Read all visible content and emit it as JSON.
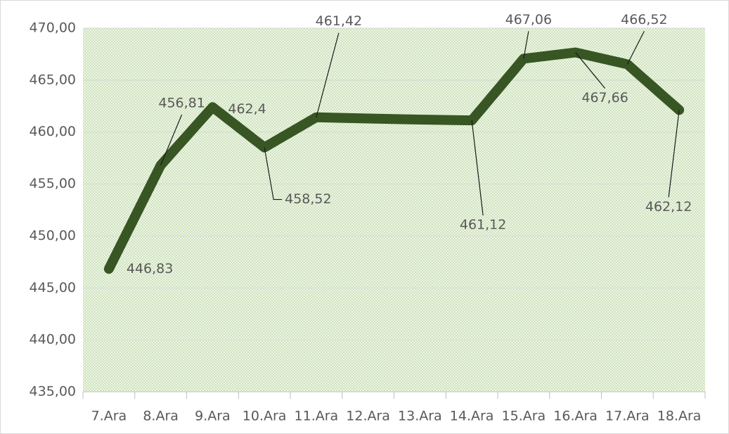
{
  "chart_data": {
    "type": "line",
    "categories": [
      "7.Ara",
      "8.Ara",
      "9.Ara",
      "10.Ara",
      "11.Ara",
      "12.Ara",
      "13.Ara",
      "14.Ara",
      "15.Ara",
      "16.Ara",
      "17.Ara",
      "18.Ara"
    ],
    "series": [
      {
        "color": "#375623",
        "values": [
          446.83,
          456.81,
          462.4,
          458.52,
          461.42,
          461.3,
          461.2,
          461.12,
          467.06,
          467.66,
          466.52,
          462.12
        ],
        "value_labels": [
          "446,83",
          "456,81",
          "462,4",
          "458,52",
          "461,42",
          null,
          null,
          "461,12",
          "467,06",
          "467,66",
          "466,52",
          "462,12"
        ]
      }
    ],
    "ylim": [
      435,
      470
    ],
    "yticks": [
      {
        "value": 435,
        "label": "435,00"
      },
      {
        "value": 440,
        "label": "440,00"
      },
      {
        "value": 445,
        "label": "445,00"
      },
      {
        "value": 450,
        "label": "450,00"
      },
      {
        "value": 455,
        "label": "455,00"
      },
      {
        "value": 460,
        "label": "460,00"
      },
      {
        "value": 465,
        "label": "465,00"
      },
      {
        "value": 470,
        "label": "470,00"
      }
    ],
    "grid": true
  }
}
